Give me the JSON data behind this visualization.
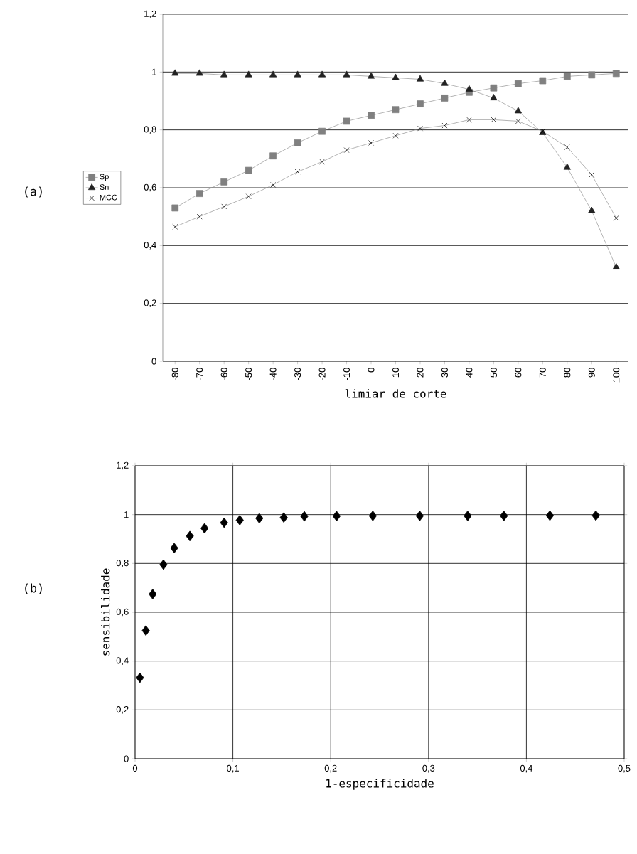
{
  "chart_data": [
    {
      "type": "line",
      "xlabel": "limiar de corte",
      "annotations": [
        "(a)"
      ],
      "categories": [
        "-80",
        "-70",
        "-60",
        "-50",
        "-40",
        "-30",
        "-20",
        "-10",
        "0",
        "10",
        "20",
        "30",
        "40",
        "50",
        "60",
        "70",
        "80",
        "90",
        "100"
      ],
      "series": [
        {
          "name": "Sp",
          "color": "#808080",
          "marker": "square",
          "values": [
            0.53,
            0.58,
            0.62,
            0.66,
            0.71,
            0.755,
            0.795,
            0.83,
            0.85,
            0.87,
            0.89,
            0.91,
            0.93,
            0.945,
            0.96,
            0.97,
            0.985,
            0.99,
            0.995
          ]
        },
        {
          "name": "Sn",
          "color": "#222222",
          "marker": "triangle",
          "values": [
            0.995,
            0.995,
            0.99,
            0.99,
            0.99,
            0.99,
            0.99,
            0.99,
            0.985,
            0.98,
            0.975,
            0.96,
            0.94,
            0.91,
            0.865,
            0.79,
            0.67,
            0.52,
            0.325
          ]
        },
        {
          "name": "MCC",
          "color": "#000000",
          "marker": "cross",
          "values": [
            0.465,
            0.5,
            0.535,
            0.57,
            0.61,
            0.655,
            0.69,
            0.73,
            0.755,
            0.78,
            0.805,
            0.815,
            0.835,
            0.835,
            0.83,
            0.795,
            0.74,
            0.645,
            0.495
          ]
        }
      ],
      "ylim": [
        0,
        1.2
      ],
      "yticks": [
        0,
        {
          "value": 0.2,
          "label": "0,2"
        },
        {
          "value": 0.4,
          "label": "0,4"
        },
        {
          "value": 0.6,
          "label": "0,6"
        },
        {
          "value": 0.8,
          "label": "0,8"
        },
        1,
        {
          "value": 1.2,
          "label": "1,2"
        }
      ],
      "grid": "y",
      "legend": "left"
    },
    {
      "type": "scatter",
      "xlabel": "1-especificidade",
      "ylabel": "sensibilidade",
      "annotations": [
        "(b)"
      ],
      "marker": "diamond",
      "x": [
        0.005,
        0.011,
        0.018,
        0.029,
        0.04,
        0.056,
        0.071,
        0.091,
        0.107,
        0.127,
        0.152,
        0.173,
        0.206,
        0.243,
        0.291,
        0.34,
        0.377,
        0.424,
        0.471
      ],
      "series": [
        {
          "color": "#000000",
          "values": [
            0.332,
            0.525,
            0.674,
            0.795,
            0.863,
            0.912,
            0.944,
            0.967,
            0.977,
            0.985,
            0.988,
            0.993,
            0.994,
            0.995,
            0.995,
            0.995,
            0.995,
            0.996,
            0.996
          ]
        }
      ],
      "xlim": [
        0,
        0.5
      ],
      "xticks": [
        0,
        {
          "value": 0.1,
          "label": "0,1"
        },
        {
          "value": 0.2,
          "label": "0,2"
        },
        {
          "value": 0.3,
          "label": "0,3"
        },
        {
          "value": 0.4,
          "label": "0,4"
        },
        {
          "value": 0.5,
          "label": "0,5"
        }
      ],
      "ylim": [
        0,
        1.2
      ],
      "yticks": [
        0,
        {
          "value": 0.2,
          "label": "0,2"
        },
        {
          "value": 0.4,
          "label": "0,4"
        },
        {
          "value": 0.6,
          "label": "0,6"
        },
        {
          "value": 0.8,
          "label": "0,8"
        },
        1,
        {
          "value": 1.2,
          "label": "1,2"
        }
      ],
      "grid": true
    }
  ]
}
